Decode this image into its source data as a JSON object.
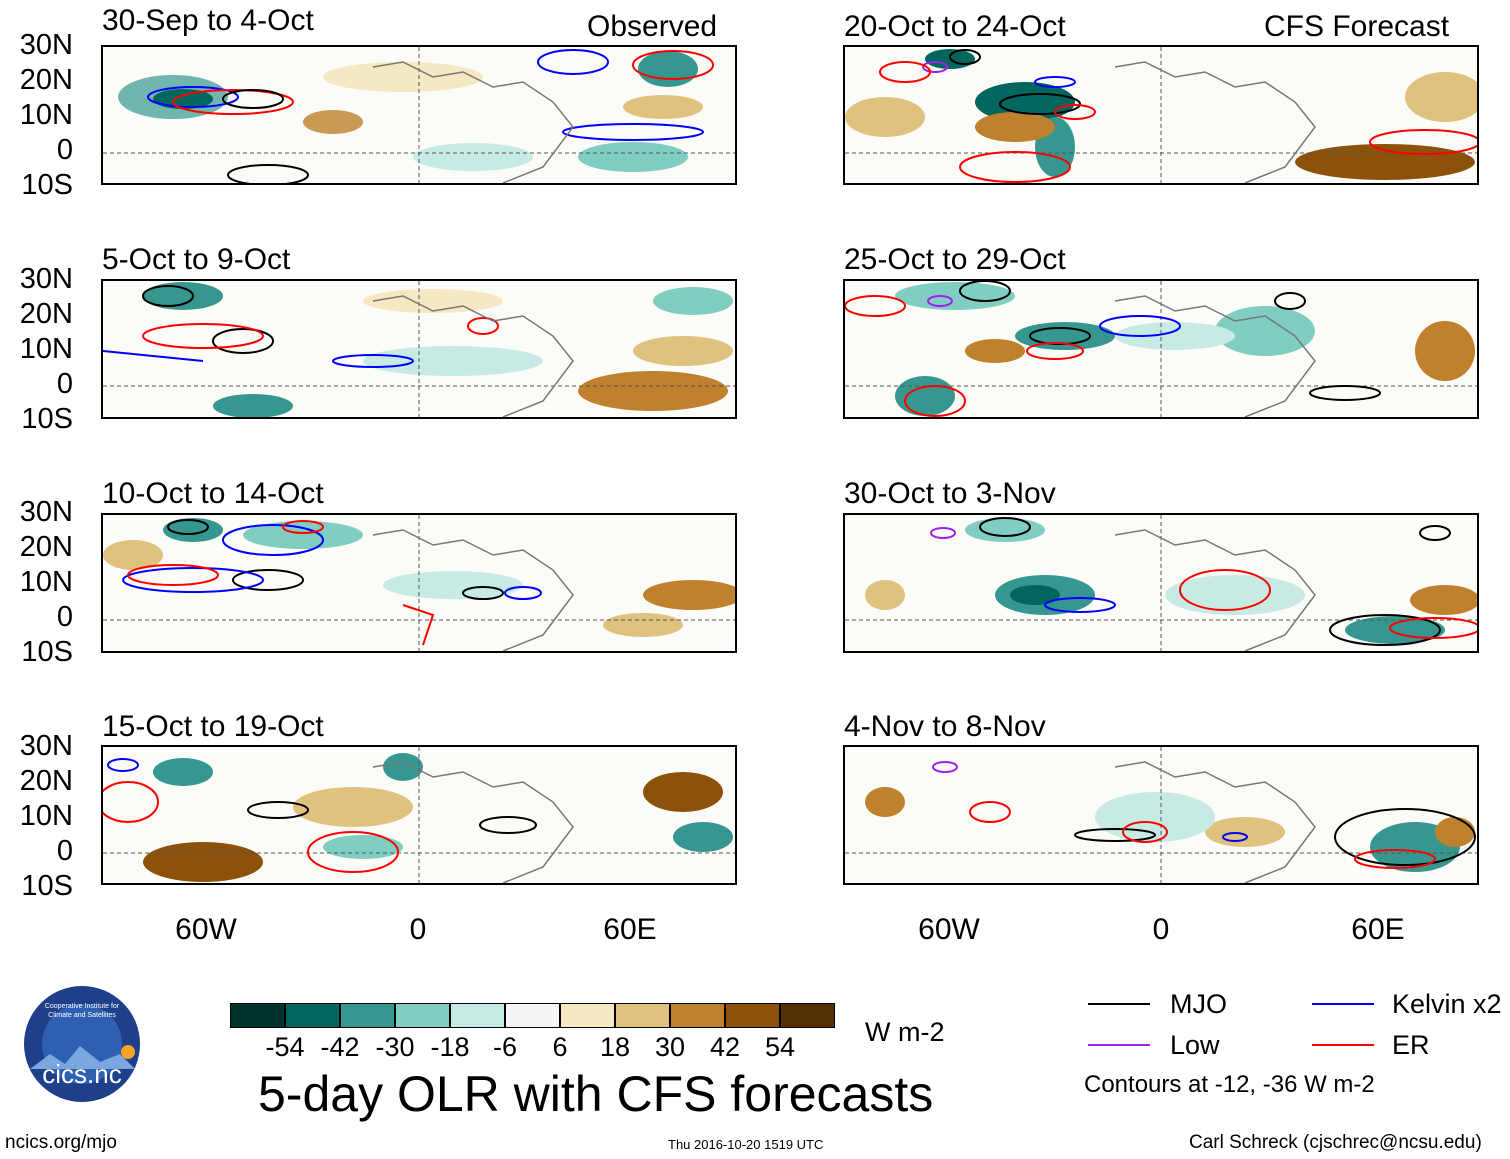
{
  "left_column": {
    "corner_label": "Observed",
    "panels": [
      {
        "title": "30-Sep to 4-Oct"
      },
      {
        "title": "5-Oct to 9-Oct"
      },
      {
        "title": "10-Oct to 14-Oct"
      },
      {
        "title": "15-Oct to 19-Oct"
      }
    ]
  },
  "right_column": {
    "corner_label": "CFS Forecast",
    "panels": [
      {
        "title": "20-Oct to 24-Oct"
      },
      {
        "title": "25-Oct to 29-Oct"
      },
      {
        "title": "30-Oct to 3-Nov"
      },
      {
        "title": "4-Nov to 8-Nov"
      }
    ]
  },
  "axes": {
    "y_labels": [
      "30N",
      "20N",
      "10N",
      "0",
      "10S"
    ],
    "x_labels": [
      "60W",
      "0",
      "60E"
    ]
  },
  "colorbar": {
    "ticks": [
      "-54",
      "-42",
      "-30",
      "-18",
      "-6",
      "6",
      "18",
      "30",
      "42",
      "54"
    ],
    "colors": [
      "#00332b",
      "#01665e",
      "#35978f",
      "#80cdc1",
      "#c7eae5",
      "#f5f5f5",
      "#f6e8c3",
      "#dfc27d",
      "#bf812d",
      "#8c510a",
      "#543005"
    ],
    "units": "W m-2"
  },
  "main_title": "5-day OLR with CFS forecasts",
  "legend": {
    "items": [
      {
        "label": "MJO",
        "color": "#000000"
      },
      {
        "label": "Kelvin x2",
        "color": "#0000ff"
      },
      {
        "label": "Low",
        "color": "#a020f0"
      },
      {
        "label": "ER",
        "color": "#ff0000"
      }
    ],
    "note": "Contours at -12, -36 W m-2"
  },
  "logo": {
    "text": "cics.nc",
    "ring_text": "Cooperative Institute for Climate and Satellites"
  },
  "footer": {
    "left": "ncics.org/mjo",
    "center": "Thu 2016-10-20 1519 UTC",
    "right": "Carl Schreck (cjschrec@ncsu.edu)"
  }
}
